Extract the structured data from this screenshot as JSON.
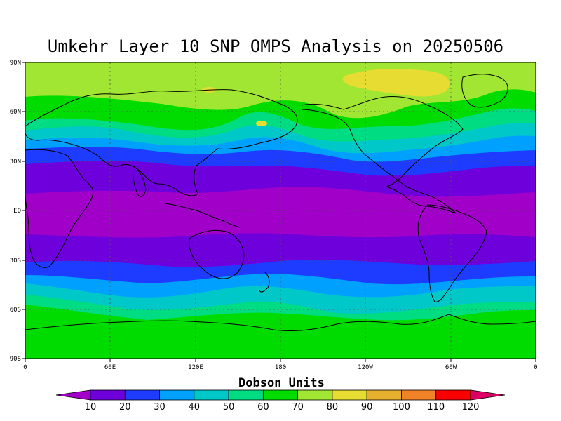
{
  "title": "Umkehr Layer 10 SNP OMPS Analysis on 20250506",
  "map": {
    "projection": "cylindrical equidistant",
    "lon_range": [
      0,
      360
    ],
    "lat_range": [
      -90,
      90
    ],
    "lat_ticks": [
      "90N",
      "60N",
      "30N",
      "EQ",
      "30S",
      "60S",
      "90S"
    ],
    "lon_ticks": [
      "0",
      "60E",
      "120E",
      "180",
      "120W",
      "60W",
      "0"
    ],
    "gridlines": "dotted"
  },
  "colorbar": {
    "title": "Dobson Units",
    "labels": [
      "10",
      "20",
      "30",
      "40",
      "50",
      "60",
      "70",
      "80",
      "90",
      "100",
      "110",
      "120"
    ],
    "colors": [
      "#a000c8",
      "#6e00dc",
      "#1e3cff",
      "#00a0ff",
      "#00c8c8",
      "#00dc82",
      "#00dc00",
      "#a0e632",
      "#e6dc32",
      "#e6af2d",
      "#f08228",
      "#fa0000",
      "#dc0064"
    ]
  },
  "chart_data": {
    "type": "heatmap",
    "title": "Umkehr Layer 10 SNP OMPS Analysis on 20250506",
    "units": "Dobson Units",
    "xlabel": "",
    "ylabel": "",
    "x_ticks": [
      "0",
      "60E",
      "120E",
      "180",
      "120W",
      "60W",
      "0"
    ],
    "y_ticks": [
      "90N",
      "60N",
      "30N",
      "EQ",
      "30S",
      "60S",
      "90S"
    ],
    "legend_levels": [
      10,
      20,
      30,
      40,
      50,
      60,
      70,
      80,
      90,
      100,
      110,
      120
    ],
    "zonal_profile": [
      {
        "lat": 80,
        "value": 75
      },
      {
        "lat": 65,
        "value": 65
      },
      {
        "lat": 55,
        "value": 55
      },
      {
        "lat": 45,
        "value": 40
      },
      {
        "lat": 35,
        "value": 28
      },
      {
        "lat": 25,
        "value": 18
      },
      {
        "lat": 10,
        "value": 8
      },
      {
        "lat": 0,
        "value": 8
      },
      {
        "lat": -10,
        "value": 9
      },
      {
        "lat": -20,
        "value": 15
      },
      {
        "lat": -30,
        "value": 22
      },
      {
        "lat": -40,
        "value": 35
      },
      {
        "lat": -50,
        "value": 52
      },
      {
        "lat": -60,
        "value": 65
      },
      {
        "lat": -75,
        "value": 65
      }
    ]
  }
}
